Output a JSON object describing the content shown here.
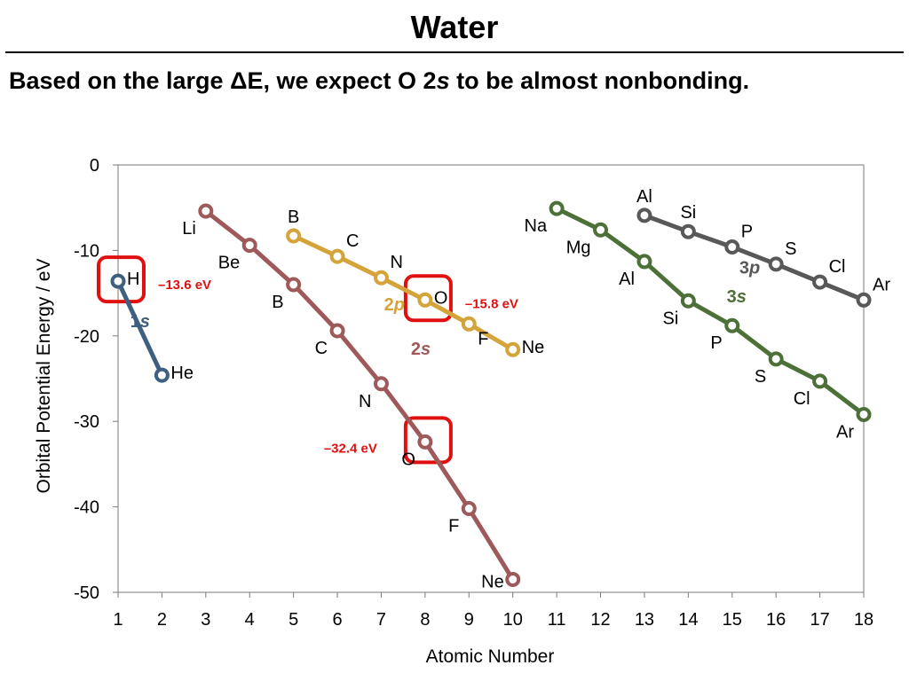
{
  "title": "Water",
  "subtitle": {
    "pre": "Based on the large ΔE, we expect O 2",
    "italic": "s",
    "post": " to be almost nonbonding."
  },
  "chart_data": {
    "type": "line",
    "xlabel": "Atomic Number",
    "ylabel": "Orbital Potential Energy / eV",
    "xlim": [
      1,
      18
    ],
    "ylim": [
      -50,
      0
    ],
    "x_ticks": [
      1,
      2,
      3,
      4,
      5,
      6,
      7,
      8,
      9,
      10,
      11,
      12,
      13,
      14,
      15,
      16,
      17,
      18
    ],
    "y_ticks": [
      0,
      -10,
      -20,
      -30,
      -40,
      -50
    ],
    "y_tick_labels": [
      "0",
      "-10",
      "-20",
      "-30",
      "-40",
      "-50"
    ],
    "grid": false,
    "series": [
      {
        "name": "1s",
        "color": "#3e5f80",
        "points": [
          {
            "x": 1,
            "y": -13.6,
            "label": "H",
            "label_pos": "right"
          },
          {
            "x": 2,
            "y": -24.6,
            "label": "He",
            "label_pos": "right"
          }
        ]
      },
      {
        "name": "2s",
        "color": "#9e5a5a",
        "points": [
          {
            "x": 3,
            "y": -5.4,
            "label": "Li",
            "label_pos": "below-left"
          },
          {
            "x": 4,
            "y": -9.4,
            "label": "Be",
            "label_pos": "below-left"
          },
          {
            "x": 5,
            "y": -14.0,
            "label": "B",
            "label_pos": "below-left"
          },
          {
            "x": 6,
            "y": -19.4,
            "label": "C",
            "label_pos": "below-left"
          },
          {
            "x": 7,
            "y": -25.6,
            "label": "N",
            "label_pos": "below-left"
          },
          {
            "x": 8,
            "y": -32.4,
            "label": "O",
            "label_pos": "below-left"
          },
          {
            "x": 9,
            "y": -40.2,
            "label": "F",
            "label_pos": "below-left"
          },
          {
            "x": 10,
            "y": -48.5,
            "label": "Ne",
            "label_pos": "left"
          }
        ]
      },
      {
        "name": "2p",
        "color": "#d4a43a",
        "points": [
          {
            "x": 5,
            "y": -8.3,
            "label": "B",
            "label_pos": "above"
          },
          {
            "x": 6,
            "y": -10.7,
            "label": "C",
            "label_pos": "above-right"
          },
          {
            "x": 7,
            "y": -13.2,
            "label": "N",
            "label_pos": "above-right"
          },
          {
            "x": 8,
            "y": -15.8,
            "label": "O",
            "label_pos": "right"
          },
          {
            "x": 9,
            "y": -18.6,
            "label": "F",
            "label_pos": "below-right"
          },
          {
            "x": 10,
            "y": -21.6,
            "label": "Ne",
            "label_pos": "right"
          }
        ]
      },
      {
        "name": "3s",
        "color": "#4c7038",
        "points": [
          {
            "x": 11,
            "y": -5.1,
            "label": "Na",
            "label_pos": "below-left"
          },
          {
            "x": 12,
            "y": -7.6,
            "label": "Mg",
            "label_pos": "below-left"
          },
          {
            "x": 13,
            "y": -11.3,
            "label": "Al",
            "label_pos": "below-left"
          },
          {
            "x": 14,
            "y": -15.9,
            "label": "Si",
            "label_pos": "below-left"
          },
          {
            "x": 15,
            "y": -18.8,
            "label": "P",
            "label_pos": "below-left"
          },
          {
            "x": 16,
            "y": -22.7,
            "label": "S",
            "label_pos": "below-left"
          },
          {
            "x": 17,
            "y": -25.3,
            "label": "Cl",
            "label_pos": "below-left"
          },
          {
            "x": 18,
            "y": -29.2,
            "label": "Ar",
            "label_pos": "below-left"
          }
        ]
      },
      {
        "name": "3p",
        "color": "#585858",
        "points": [
          {
            "x": 13,
            "y": -5.9,
            "label": "Al",
            "label_pos": "above"
          },
          {
            "x": 14,
            "y": -7.8,
            "label": "Si",
            "label_pos": "above"
          },
          {
            "x": 15,
            "y": -9.6,
            "label": "P",
            "label_pos": "above-right"
          },
          {
            "x": 16,
            "y": -11.6,
            "label": "S",
            "label_pos": "above-right"
          },
          {
            "x": 17,
            "y": -13.7,
            "label": "Cl",
            "label_pos": "above-right"
          },
          {
            "x": 18,
            "y": -15.8,
            "label": "Ar",
            "label_pos": "above-right"
          }
        ]
      }
    ],
    "series_labels": [
      {
        "series": "1s",
        "main": "1",
        "italic": "s",
        "x": 1.5,
        "y": -19.0
      },
      {
        "series": "2s",
        "main": "2",
        "italic": "s",
        "x": 7.9,
        "y": -22.2
      },
      {
        "series": "2p",
        "main": "2",
        "italic": "p",
        "x": 7.3,
        "y": -17.0
      },
      {
        "series": "3s",
        "main": "3",
        "italic": "s",
        "x": 15.1,
        "y": -16.1
      },
      {
        "series": "3p",
        "main": "3",
        "italic": "p",
        "x": 15.4,
        "y": -12.7
      }
    ],
    "highlights": [
      {
        "x": 1,
        "y": -13.6,
        "label": "–13.6 eV",
        "label_side": "right"
      },
      {
        "x": 8,
        "y": -15.8,
        "label": "–15.8 eV",
        "label_side": "right"
      },
      {
        "x": 8,
        "y": -32.4,
        "label": "–32.4 eV",
        "label_side": "left"
      }
    ],
    "highlight_color": "#e01010"
  }
}
